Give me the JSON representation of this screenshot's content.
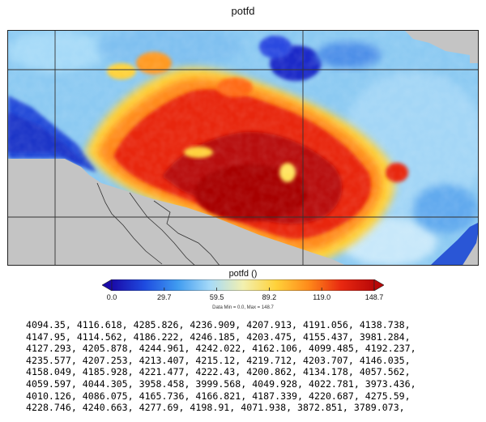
{
  "chart_data": {
    "type": "heatmap",
    "title": "potfd",
    "colorbar": {
      "title": "potfd ()",
      "tick_labels": [
        "0.0",
        "29.7",
        "59.5",
        "89.2",
        "119.0",
        "148.7"
      ],
      "min": 0.0,
      "max": 148.7,
      "extend": "both",
      "colors": [
        "#1a0aa8",
        "#1e4be0",
        "#3f9bf0",
        "#a6daf8",
        "#f2f0b0",
        "#ffd23a",
        "#ff8a1a",
        "#e82810",
        "#b80808"
      ],
      "stats_text": "Data Min = 0.0, Max = 148.7"
    },
    "colors": {
      "land_masked": "#c4c4c4",
      "ocean": "#2a5ad8",
      "boundary_lines": "#333333"
    }
  },
  "text_output": {
    "lines": [
      "4094.35, 4116.618, 4285.826, 4236.909, 4207.913, 4191.056, 4138.738,",
      "4147.95, 4114.562, 4186.222, 4246.185, 4203.475, 4155.437, 3981.284,",
      "4127.293, 4205.878, 4244.961, 4242.022, 4162.106, 4099.485, 4192.237,",
      "4235.577, 4207.253, 4213.407, 4215.12, 4219.712, 4203.707, 4146.035,",
      "4158.049, 4185.928, 4221.477, 4222.43, 4200.862, 4134.178, 4057.562,",
      "4059.597, 4044.305, 3958.458, 3999.568, 4049.928, 4022.781, 3973.436,",
      "4010.126, 4086.075, 4165.736, 4166.821, 4187.339, 4220.687, 4275.59,",
      "4228.746, 4240.663, 4277.69, 4198.91, 4071.938, 3872.851, 3789.073,"
    ]
  }
}
